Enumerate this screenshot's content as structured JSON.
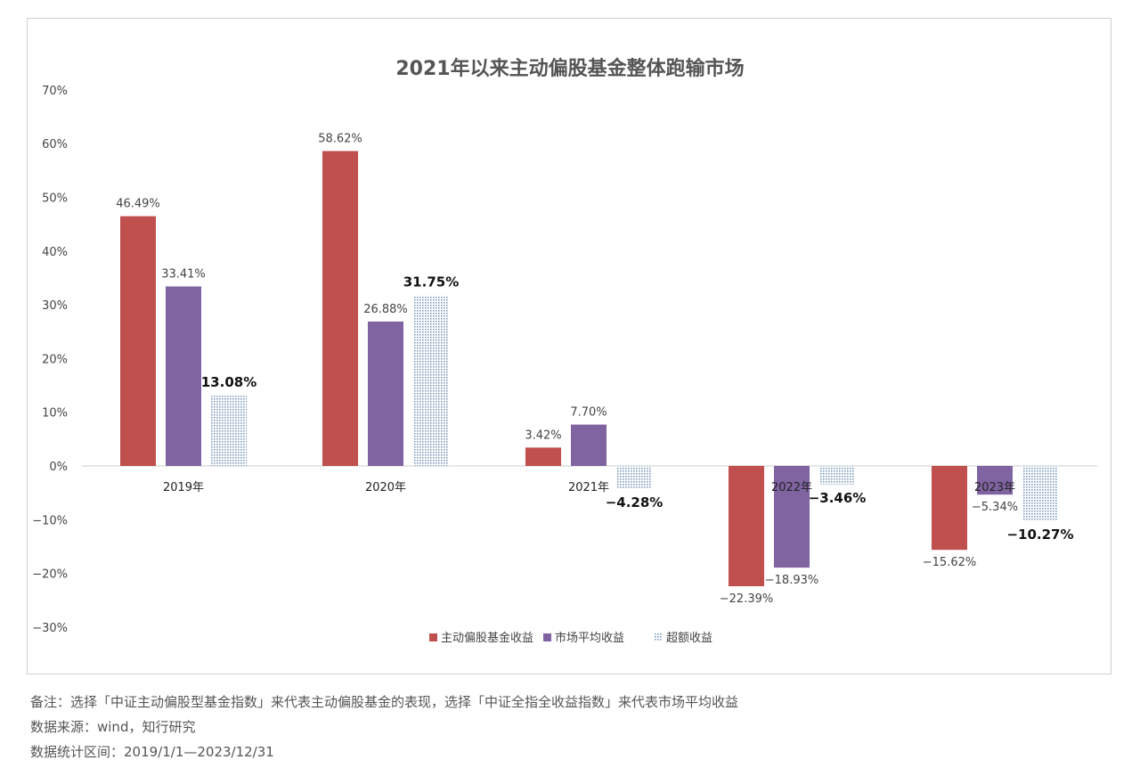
{
  "chart_data": {
    "type": "bar",
    "title": "2021年以来主动偏股基金整体跑输市场",
    "categories": [
      "2019年",
      "2020年",
      "2021年",
      "2022年",
      "2023年"
    ],
    "series": [
      {
        "name": "主动偏股基金收益",
        "color": "#c0504d",
        "values": [
          46.49,
          58.62,
          3.42,
          -22.39,
          -15.62
        ],
        "labels": [
          "46.49%",
          "58.62%",
          "3.42%",
          "−22.39%",
          "−15.62%"
        ]
      },
      {
        "name": "市场平均收益",
        "color": "#8064a2",
        "values": [
          33.41,
          26.88,
          7.7,
          -18.93,
          -5.34
        ],
        "labels": [
          "33.41%",
          "26.88%",
          "7.70%",
          "−18.93%",
          "−5.34%"
        ]
      },
      {
        "name": "超额收益",
        "color": "#8fa9c6",
        "pattern": "dotted",
        "values": [
          13.08,
          31.75,
          -4.28,
          -3.46,
          -10.27
        ],
        "labels": [
          "13.08%",
          "31.75%",
          "−4.28%",
          "−3.46%",
          "−10.27%"
        ]
      }
    ],
    "ylim": [
      -30,
      70
    ],
    "yticks": [
      "70%",
      "60%",
      "50%",
      "40%",
      "30%",
      "20%",
      "10%",
      "0%",
      "−10%",
      "−20%",
      "−30%"
    ],
    "ytick_values": [
      70,
      60,
      50,
      40,
      30,
      20,
      10,
      0,
      -10,
      -20,
      -30
    ],
    "legend": "bottom",
    "grid": false
  },
  "notes": {
    "remark": "备注：选择「中证主动偏股型基金指数」来代表主动偏股基金的表现，选择「中证全指全收益指数」来代表市场平均收益",
    "source": "数据来源：wind，知行研究",
    "period": "数据统计区间：2019/1/1—2023/12/31"
  }
}
